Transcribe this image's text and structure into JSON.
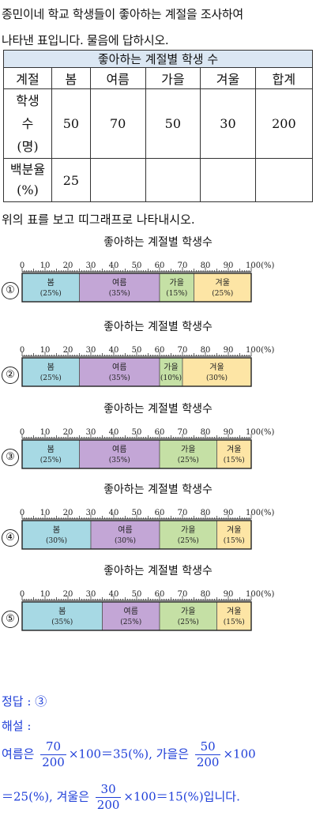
{
  "question": {
    "line1": "종민이네 학교 학생들이 좋아하는 계절을 조사하여",
    "line2": "나타낸 표입니다. 물음에 답하시오."
  },
  "table": {
    "title": "좋아하는 계절별 학생 수",
    "headers": [
      "계절",
      "봄",
      "여름",
      "가을",
      "겨울",
      "합계"
    ],
    "students_label": [
      "학생",
      "수",
      "(명)"
    ],
    "students": [
      "50",
      "70",
      "50",
      "30",
      "200"
    ],
    "percent_label": [
      "백분율",
      "(%)"
    ],
    "percent": [
      "25",
      "",
      "",
      "",
      ""
    ]
  },
  "instruction": "위의 표를 보고 띠그래프로 나타내시오.",
  "scale_labels": [
    "0",
    "10",
    "20",
    "30",
    "40",
    "50",
    "60",
    "70",
    "80",
    "90",
    "100(%)"
  ],
  "colors": {
    "spring": "#a7d9e4",
    "summer": "#c3a6d6",
    "autumn": "#c5e0a5",
    "winter": "#fde5a5"
  },
  "options": [
    {
      "marker": "①",
      "title": "좋아하는 계절별 학생수",
      "segments": [
        {
          "key": "spring",
          "name": "봄",
          "label": "(25%)",
          "percent": 25
        },
        {
          "key": "summer",
          "name": "여름",
          "label": "(35%)",
          "percent": 35
        },
        {
          "key": "autumn",
          "name": "가을",
          "label": "(15%)",
          "percent": 15
        },
        {
          "key": "winter",
          "name": "겨울",
          "label": "(25%)",
          "percent": 25
        }
      ]
    },
    {
      "marker": "②",
      "title": "좋아하는 계절별 학생수",
      "segments": [
        {
          "key": "spring",
          "name": "봄",
          "label": "(25%)",
          "percent": 25
        },
        {
          "key": "summer",
          "name": "여름",
          "label": "(35%)",
          "percent": 35
        },
        {
          "key": "autumn",
          "name": "가을",
          "label": "(10%)",
          "percent": 10
        },
        {
          "key": "winter",
          "name": "겨울",
          "label": "(30%)",
          "percent": 30
        }
      ]
    },
    {
      "marker": "③",
      "title": "좋아하는 계절별 학생수",
      "segments": [
        {
          "key": "spring",
          "name": "봄",
          "label": "(25%)",
          "percent": 25
        },
        {
          "key": "summer",
          "name": "여름",
          "label": "(35%)",
          "percent": 35
        },
        {
          "key": "autumn",
          "name": "가을",
          "label": "(25%)",
          "percent": 25
        },
        {
          "key": "winter",
          "name": "겨울",
          "label": "(15%)",
          "percent": 15
        }
      ]
    },
    {
      "marker": "④",
      "title": "좋아하는 계절별 학생수",
      "segments": [
        {
          "key": "spring",
          "name": "봄",
          "label": "(30%)",
          "percent": 30
        },
        {
          "key": "summer",
          "name": "여름",
          "label": "(30%)",
          "percent": 30
        },
        {
          "key": "autumn",
          "name": "가을",
          "label": "(25%)",
          "percent": 25
        },
        {
          "key": "winter",
          "name": "겨울",
          "label": "(15%)",
          "percent": 15
        }
      ]
    },
    {
      "marker": "⑤",
      "title": "좋아하는 계절별 학생수",
      "segments": [
        {
          "key": "spring",
          "name": "봄",
          "label": "(35%)",
          "percent": 35
        },
        {
          "key": "summer",
          "name": "여름",
          "label": "(25%)",
          "percent": 25
        },
        {
          "key": "autumn",
          "name": "가을",
          "label": "(25%)",
          "percent": 25
        },
        {
          "key": "winter",
          "name": "겨울",
          "label": "(15%)",
          "percent": 15
        }
      ]
    }
  ],
  "answer": {
    "answer_line": "정답 : ③",
    "explanation_label": "해설 :",
    "summer_pre": "여름은",
    "summer_num": "70",
    "summer_den": "200",
    "summer_post": "×100＝35(%),",
    "autumn_pre": "가을은",
    "autumn_num": "50",
    "autumn_den": "200",
    "autumn_post": "×100",
    "line3_pre": "＝25(%),",
    "winter_pre": "겨울은",
    "winter_num": "30",
    "winter_den": "200",
    "winter_post": "×100＝15(%)입니다."
  }
}
